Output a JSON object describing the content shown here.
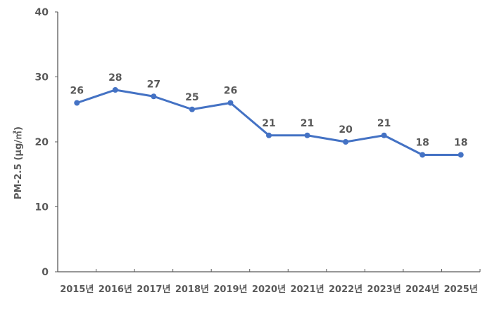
{
  "chart_data": {
    "type": "line",
    "categories": [
      "2015년",
      "2016년",
      "2017년",
      "2018년",
      "2019년",
      "2020년",
      "2021년",
      "2022년",
      "2023년",
      "2024년",
      "2025년"
    ],
    "series": [
      {
        "values": [
          26,
          28,
          27,
          25,
          26,
          21,
          21,
          20,
          21,
          18,
          18
        ]
      }
    ],
    "ylabel": "PM-2.5 (μg/㎥)",
    "xlabel": "",
    "ylim": [
      0,
      40
    ],
    "yticks": [
      0,
      10,
      20,
      30,
      40
    ],
    "grid": false,
    "data_labels": true,
    "line_color": "#4472C4"
  }
}
